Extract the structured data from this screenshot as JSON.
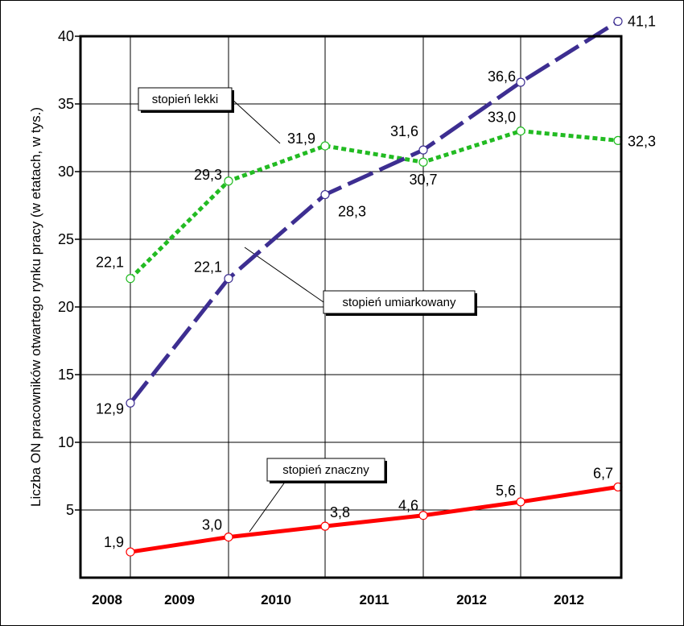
{
  "chart_data": {
    "type": "line",
    "title": "",
    "ylabel": "Liczba ON pracowników otwartego rynku pracy (w etatach, w tys.)",
    "xlabel": "",
    "categories": [
      "2008",
      "2009",
      "2010",
      "2011",
      "2012",
      "2012"
    ],
    "y_ticks": [
      "5",
      "10",
      "15",
      "20",
      "25",
      "30",
      "35",
      "40"
    ],
    "ylim": [
      0,
      40
    ],
    "grid": true,
    "series": [
      {
        "name": "stopień lekki",
        "color": "#22bb22",
        "style": "dotted",
        "values": [
          22.1,
          29.3,
          31.9,
          30.7,
          33.0,
          32.3
        ],
        "labels": [
          "22,1",
          "29,3",
          "31,9",
          "30,7",
          "33,0",
          "32,3"
        ]
      },
      {
        "name": "stopień umiarkowany",
        "color": "#3d2e91",
        "style": "dashed",
        "values": [
          12.9,
          22.1,
          28.3,
          31.6,
          36.6,
          41.1
        ],
        "labels": [
          "12,9",
          "22,1",
          "28,3",
          "31,6",
          "36,6",
          "41,1"
        ]
      },
      {
        "name": "stopień znaczny",
        "color": "#ff0000",
        "style": "solid",
        "values": [
          1.9,
          3.0,
          3.8,
          4.6,
          5.6,
          6.7
        ],
        "labels": [
          "1,9",
          "3,0",
          "3,8",
          "4,6",
          "5,6",
          "6,7"
        ]
      }
    ]
  }
}
